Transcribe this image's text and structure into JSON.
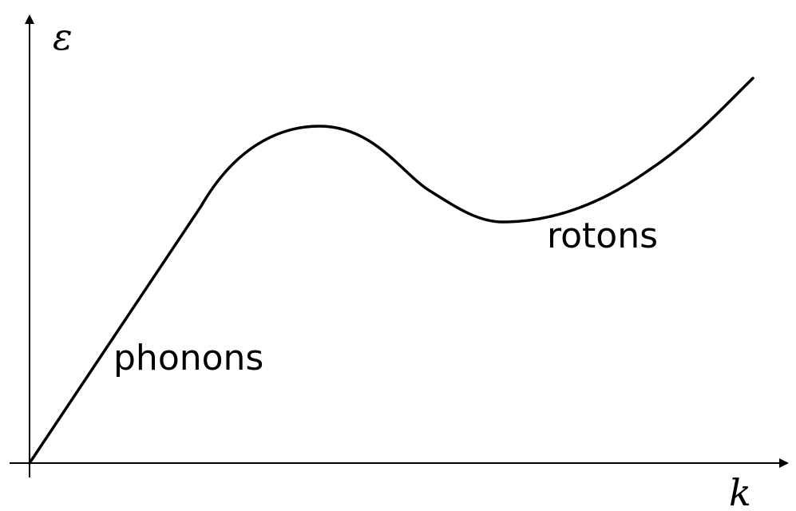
{
  "diagram": {
    "y_axis_label": "ε",
    "x_axis_label": "k",
    "phonon_label": "phonons",
    "roton_label": "rotons",
    "line_color": "#000000"
  }
}
